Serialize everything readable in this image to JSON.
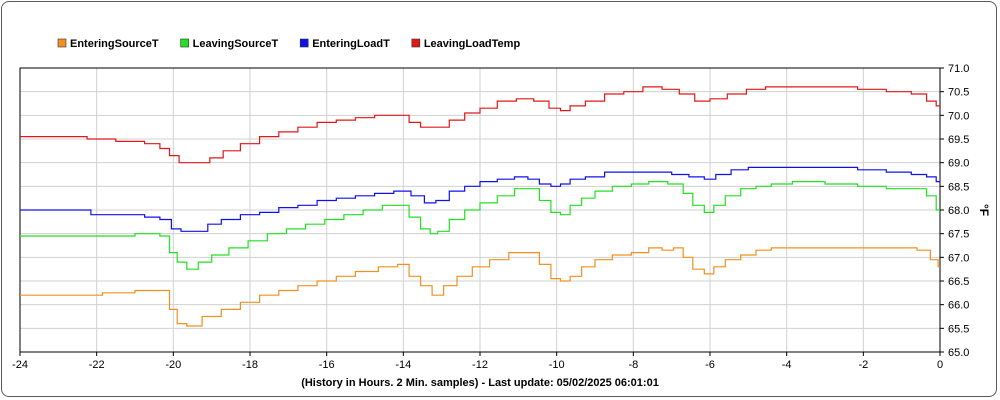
{
  "chart_data": {
    "type": "line",
    "xlabel": "(History in Hours. 2 Min. samples) - Last update: 05/02/2025 06:01:01",
    "ylabel": "°F",
    "xlim": [
      -24,
      0
    ],
    "ylim": [
      65.0,
      71.0
    ],
    "x_ticks": [
      "-24",
      "-22",
      "-20",
      "-18",
      "-16",
      "-14",
      "-12",
      "-10",
      "-8",
      "-6",
      "-4",
      "-2",
      "0"
    ],
    "y_ticks": [
      "65.0",
      "65.5",
      "66.0",
      "66.5",
      "67.0",
      "67.5",
      "68.0",
      "68.5",
      "69.0",
      "69.5",
      "70.0",
      "70.5",
      "71.0"
    ],
    "grid": true,
    "legend_position": "top-left",
    "series": [
      {
        "name": "EnteringSourceT",
        "color": "#f0901e",
        "points": [
          [
            -24,
            66.2
          ],
          [
            -22.2,
            66.2
          ],
          [
            -21.5,
            66.25
          ],
          [
            -20.5,
            66.3
          ],
          [
            -20.2,
            66.3
          ],
          [
            -20,
            65.9
          ],
          [
            -19.8,
            65.6
          ],
          [
            -19.5,
            65.55
          ],
          [
            -19.0,
            65.75
          ],
          [
            -18.5,
            65.9
          ],
          [
            -18,
            66.05
          ],
          [
            -17.5,
            66.2
          ],
          [
            -17,
            66.3
          ],
          [
            -16.5,
            66.4
          ],
          [
            -16,
            66.5
          ],
          [
            -15.5,
            66.6
          ],
          [
            -15,
            66.7
          ],
          [
            -14.3,
            66.8
          ],
          [
            -14.0,
            66.85
          ],
          [
            -13.7,
            66.6
          ],
          [
            -13.4,
            66.4
          ],
          [
            -13.1,
            66.2
          ],
          [
            -12.8,
            66.4
          ],
          [
            -12.4,
            66.6
          ],
          [
            -12,
            66.8
          ],
          [
            -11.5,
            66.95
          ],
          [
            -11,
            67.1
          ],
          [
            -10.6,
            67.1
          ],
          [
            -10.3,
            66.85
          ],
          [
            -10.0,
            66.55
          ],
          [
            -9.8,
            66.5
          ],
          [
            -9.5,
            66.6
          ],
          [
            -9.2,
            66.8
          ],
          [
            -8.8,
            66.95
          ],
          [
            -8.3,
            67.05
          ],
          [
            -7.8,
            67.1
          ],
          [
            -7.4,
            67.2
          ],
          [
            -7.1,
            67.15
          ],
          [
            -6.8,
            67.2
          ],
          [
            -6.6,
            67.0
          ],
          [
            -6.3,
            66.75
          ],
          [
            -6.0,
            66.65
          ],
          [
            -5.8,
            66.8
          ],
          [
            -5.4,
            66.95
          ],
          [
            -5.0,
            67.05
          ],
          [
            -4.6,
            67.15
          ],
          [
            -4.2,
            67.2
          ],
          [
            -3.5,
            67.2
          ],
          [
            -2.5,
            67.2
          ],
          [
            -1.5,
            67.2
          ],
          [
            -0.8,
            67.2
          ],
          [
            -0.4,
            67.15
          ],
          [
            -0.1,
            66.95
          ],
          [
            0,
            66.8
          ]
        ]
      },
      {
        "name": "LeavingSourceT",
        "color": "#22e022",
        "points": [
          [
            -24,
            67.45
          ],
          [
            -22.5,
            67.45
          ],
          [
            -21.5,
            67.45
          ],
          [
            -20.5,
            67.5
          ],
          [
            -20.2,
            67.45
          ],
          [
            -20,
            67.1
          ],
          [
            -19.8,
            66.9
          ],
          [
            -19.5,
            66.75
          ],
          [
            -19.2,
            66.9
          ],
          [
            -18.8,
            67.05
          ],
          [
            -18.3,
            67.2
          ],
          [
            -17.8,
            67.35
          ],
          [
            -17.3,
            67.5
          ],
          [
            -16.8,
            67.6
          ],
          [
            -16.3,
            67.7
          ],
          [
            -15.8,
            67.8
          ],
          [
            -15.3,
            67.9
          ],
          [
            -14.8,
            68.0
          ],
          [
            -14.3,
            68.1
          ],
          [
            -14.0,
            68.1
          ],
          [
            -13.7,
            67.85
          ],
          [
            -13.4,
            67.6
          ],
          [
            -13.2,
            67.5
          ],
          [
            -13.0,
            67.55
          ],
          [
            -12.6,
            67.8
          ],
          [
            -12.2,
            68.0
          ],
          [
            -11.8,
            68.15
          ],
          [
            -11.3,
            68.3
          ],
          [
            -10.9,
            68.45
          ],
          [
            -10.6,
            68.45
          ],
          [
            -10.3,
            68.2
          ],
          [
            -10.0,
            67.95
          ],
          [
            -9.8,
            67.9
          ],
          [
            -9.5,
            68.1
          ],
          [
            -9.2,
            68.25
          ],
          [
            -8.8,
            68.4
          ],
          [
            -8.3,
            68.5
          ],
          [
            -7.8,
            68.55
          ],
          [
            -7.4,
            68.6
          ],
          [
            -6.8,
            68.55
          ],
          [
            -6.6,
            68.35
          ],
          [
            -6.3,
            68.1
          ],
          [
            -6.0,
            67.95
          ],
          [
            -5.8,
            68.1
          ],
          [
            -5.4,
            68.3
          ],
          [
            -5.0,
            68.45
          ],
          [
            -4.6,
            68.5
          ],
          [
            -4.2,
            68.55
          ],
          [
            -3.5,
            68.6
          ],
          [
            -2.5,
            68.55
          ],
          [
            -1.8,
            68.5
          ],
          [
            -1.0,
            68.45
          ],
          [
            -0.5,
            68.45
          ],
          [
            -0.2,
            68.3
          ],
          [
            0,
            68.0
          ]
        ]
      },
      {
        "name": "EnteringLoadT",
        "color": "#1010ee",
        "points": [
          [
            -24,
            68.0
          ],
          [
            -22.3,
            68.0
          ],
          [
            -22.0,
            67.9
          ],
          [
            -21,
            67.9
          ],
          [
            -20.5,
            67.85
          ],
          [
            -20.2,
            67.8
          ],
          [
            -19.9,
            67.6
          ],
          [
            -19.7,
            67.55
          ],
          [
            -19.2,
            67.55
          ],
          [
            -19.0,
            67.7
          ],
          [
            -18.5,
            67.8
          ],
          [
            -18,
            67.9
          ],
          [
            -17.5,
            67.95
          ],
          [
            -17,
            68.05
          ],
          [
            -16.5,
            68.1
          ],
          [
            -16,
            68.2
          ],
          [
            -15.5,
            68.25
          ],
          [
            -15,
            68.3
          ],
          [
            -14.5,
            68.35
          ],
          [
            -14.0,
            68.4
          ],
          [
            -13.6,
            68.3
          ],
          [
            -13.3,
            68.15
          ],
          [
            -13.0,
            68.2
          ],
          [
            -12.6,
            68.4
          ],
          [
            -12.2,
            68.5
          ],
          [
            -11.8,
            68.6
          ],
          [
            -11.3,
            68.65
          ],
          [
            -10.9,
            68.7
          ],
          [
            -10.6,
            68.65
          ],
          [
            -10.3,
            68.55
          ],
          [
            -10.0,
            68.5
          ],
          [
            -9.8,
            68.55
          ],
          [
            -9.5,
            68.65
          ],
          [
            -9.0,
            68.7
          ],
          [
            -8.5,
            68.8
          ],
          [
            -7.8,
            68.8
          ],
          [
            -7.2,
            68.8
          ],
          [
            -6.8,
            68.75
          ],
          [
            -6.3,
            68.7
          ],
          [
            -6.0,
            68.65
          ],
          [
            -5.7,
            68.75
          ],
          [
            -5.2,
            68.85
          ],
          [
            -4.8,
            68.9
          ],
          [
            -4.2,
            68.9
          ],
          [
            -3.5,
            68.9
          ],
          [
            -2.5,
            68.9
          ],
          [
            -1.8,
            68.85
          ],
          [
            -1.0,
            68.8
          ],
          [
            -0.5,
            68.75
          ],
          [
            -0.2,
            68.7
          ],
          [
            0,
            68.6
          ]
        ]
      },
      {
        "name": "LeavingLoadTemp",
        "color": "#e21818",
        "points": [
          [
            -24,
            69.55
          ],
          [
            -22.5,
            69.55
          ],
          [
            -22,
            69.5
          ],
          [
            -21,
            69.45
          ],
          [
            -20.5,
            69.4
          ],
          [
            -20.2,
            69.3
          ],
          [
            -20,
            69.15
          ],
          [
            -19.7,
            69.0
          ],
          [
            -19.2,
            69.0
          ],
          [
            -18.9,
            69.1
          ],
          [
            -18.5,
            69.25
          ],
          [
            -18,
            69.4
          ],
          [
            -17.5,
            69.55
          ],
          [
            -17,
            69.65
          ],
          [
            -16.5,
            69.75
          ],
          [
            -16,
            69.85
          ],
          [
            -15.5,
            69.9
          ],
          [
            -15,
            69.95
          ],
          [
            -14.5,
            70.0
          ],
          [
            -14.0,
            70.0
          ],
          [
            -13.7,
            69.85
          ],
          [
            -13.4,
            69.75
          ],
          [
            -13.0,
            69.75
          ],
          [
            -12.6,
            69.9
          ],
          [
            -12.2,
            70.05
          ],
          [
            -11.8,
            70.15
          ],
          [
            -11.3,
            70.3
          ],
          [
            -10.8,
            70.35
          ],
          [
            -10.4,
            70.3
          ],
          [
            -10.0,
            70.15
          ],
          [
            -9.8,
            70.1
          ],
          [
            -9.5,
            70.2
          ],
          [
            -9.0,
            70.3
          ],
          [
            -8.5,
            70.45
          ],
          [
            -8.0,
            70.5
          ],
          [
            -7.5,
            70.6
          ],
          [
            -7.0,
            70.55
          ],
          [
            -6.6,
            70.45
          ],
          [
            -6.2,
            70.3
          ],
          [
            -5.8,
            70.35
          ],
          [
            -5.3,
            70.45
          ],
          [
            -4.8,
            70.55
          ],
          [
            -4.3,
            70.6
          ],
          [
            -3.5,
            70.6
          ],
          [
            -2.5,
            70.6
          ],
          [
            -1.8,
            70.55
          ],
          [
            -1.0,
            70.5
          ],
          [
            -0.5,
            70.45
          ],
          [
            -0.2,
            70.3
          ],
          [
            0,
            70.2
          ]
        ]
      }
    ]
  }
}
